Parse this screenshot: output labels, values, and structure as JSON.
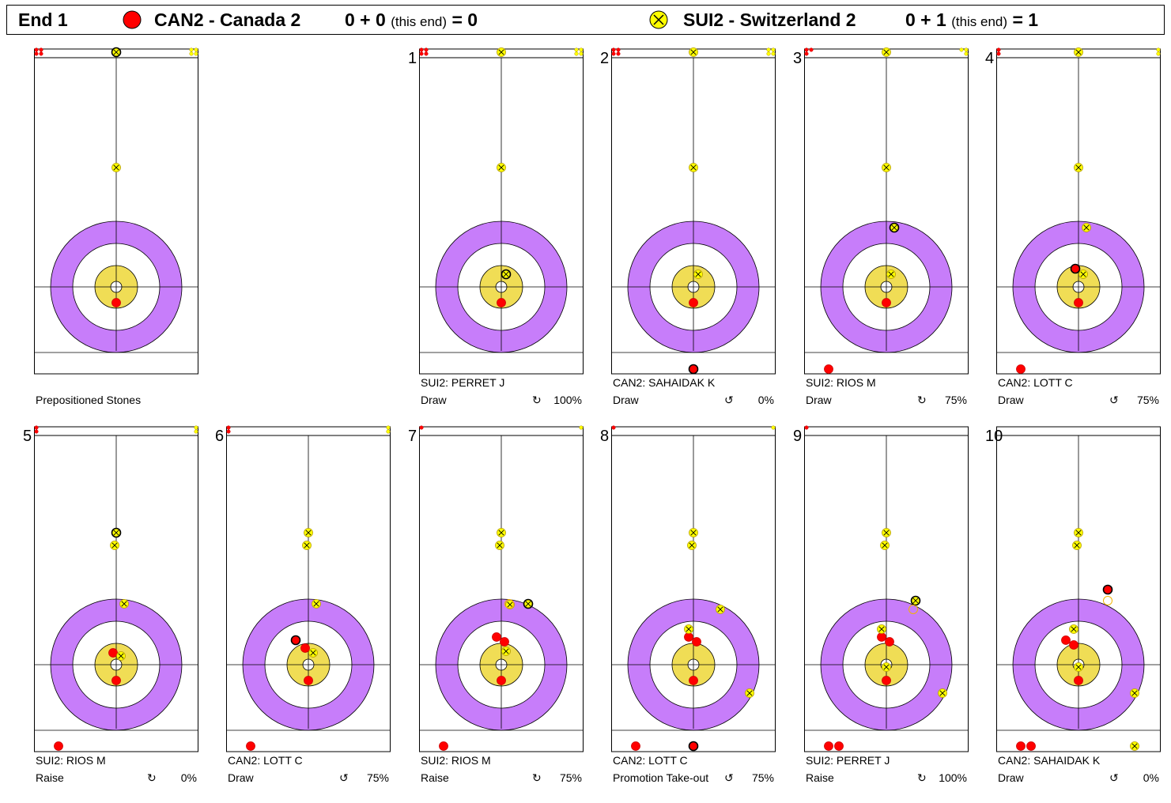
{
  "header": {
    "end_label": "End 1",
    "team1": {
      "name": "CAN2 - Canada 2",
      "score": "0 + 0",
      "this_end": "(this end)",
      "total": "= 0",
      "color": "#ff0000"
    },
    "team2": {
      "name": "SUI2 - Switzerland 2",
      "score": "0 + 1",
      "this_end": "(this end)",
      "total": "= 1",
      "color": "#ffff00"
    }
  },
  "colors": {
    "red_stone": "#ff0000",
    "yellow_stone": "#ffff00",
    "ring_12ft": "#c77dfa",
    "ring_4ft": "#f0dd55"
  },
  "rotation_icon": "rotation-icon",
  "prepositioned_label": "Prepositioned Stones",
  "shots": [
    {
      "number": "1",
      "player": "SUI2: PERRET J",
      "shot": "Draw",
      "rotation": "↻",
      "percent": "100%"
    },
    {
      "number": "2",
      "player": "CAN2: SAHAIDAK K",
      "shot": "Draw",
      "rotation": "↺",
      "percent": "0%"
    },
    {
      "number": "3",
      "player": "SUI2: RIOS M",
      "shot": "Draw",
      "rotation": "↻",
      "percent": "75%"
    },
    {
      "number": "4",
      "player": "CAN2: LOTT C",
      "shot": "Draw",
      "rotation": "↺",
      "percent": "75%"
    },
    {
      "number": "5",
      "player": "SUI2: RIOS M",
      "shot": "Raise",
      "rotation": "↻",
      "percent": "0%"
    },
    {
      "number": "6",
      "player": "CAN2: LOTT C",
      "shot": "Draw",
      "rotation": "↺",
      "percent": "75%"
    },
    {
      "number": "7",
      "player": "SUI2: RIOS M",
      "shot": "Raise",
      "rotation": "↻",
      "percent": "75%"
    },
    {
      "number": "8",
      "player": "CAN2: LOTT C",
      "shot": "Promotion Take-out",
      "rotation": "↺",
      "percent": "75%"
    },
    {
      "number": "9",
      "player": "SUI2: PERRET J",
      "shot": "Raise",
      "rotation": "↻",
      "percent": "100%"
    },
    {
      "number": "10",
      "player": "CAN2: SAHAIDAK K",
      "shot": "Draw",
      "rotation": "↺",
      "percent": "0%"
    }
  ]
}
